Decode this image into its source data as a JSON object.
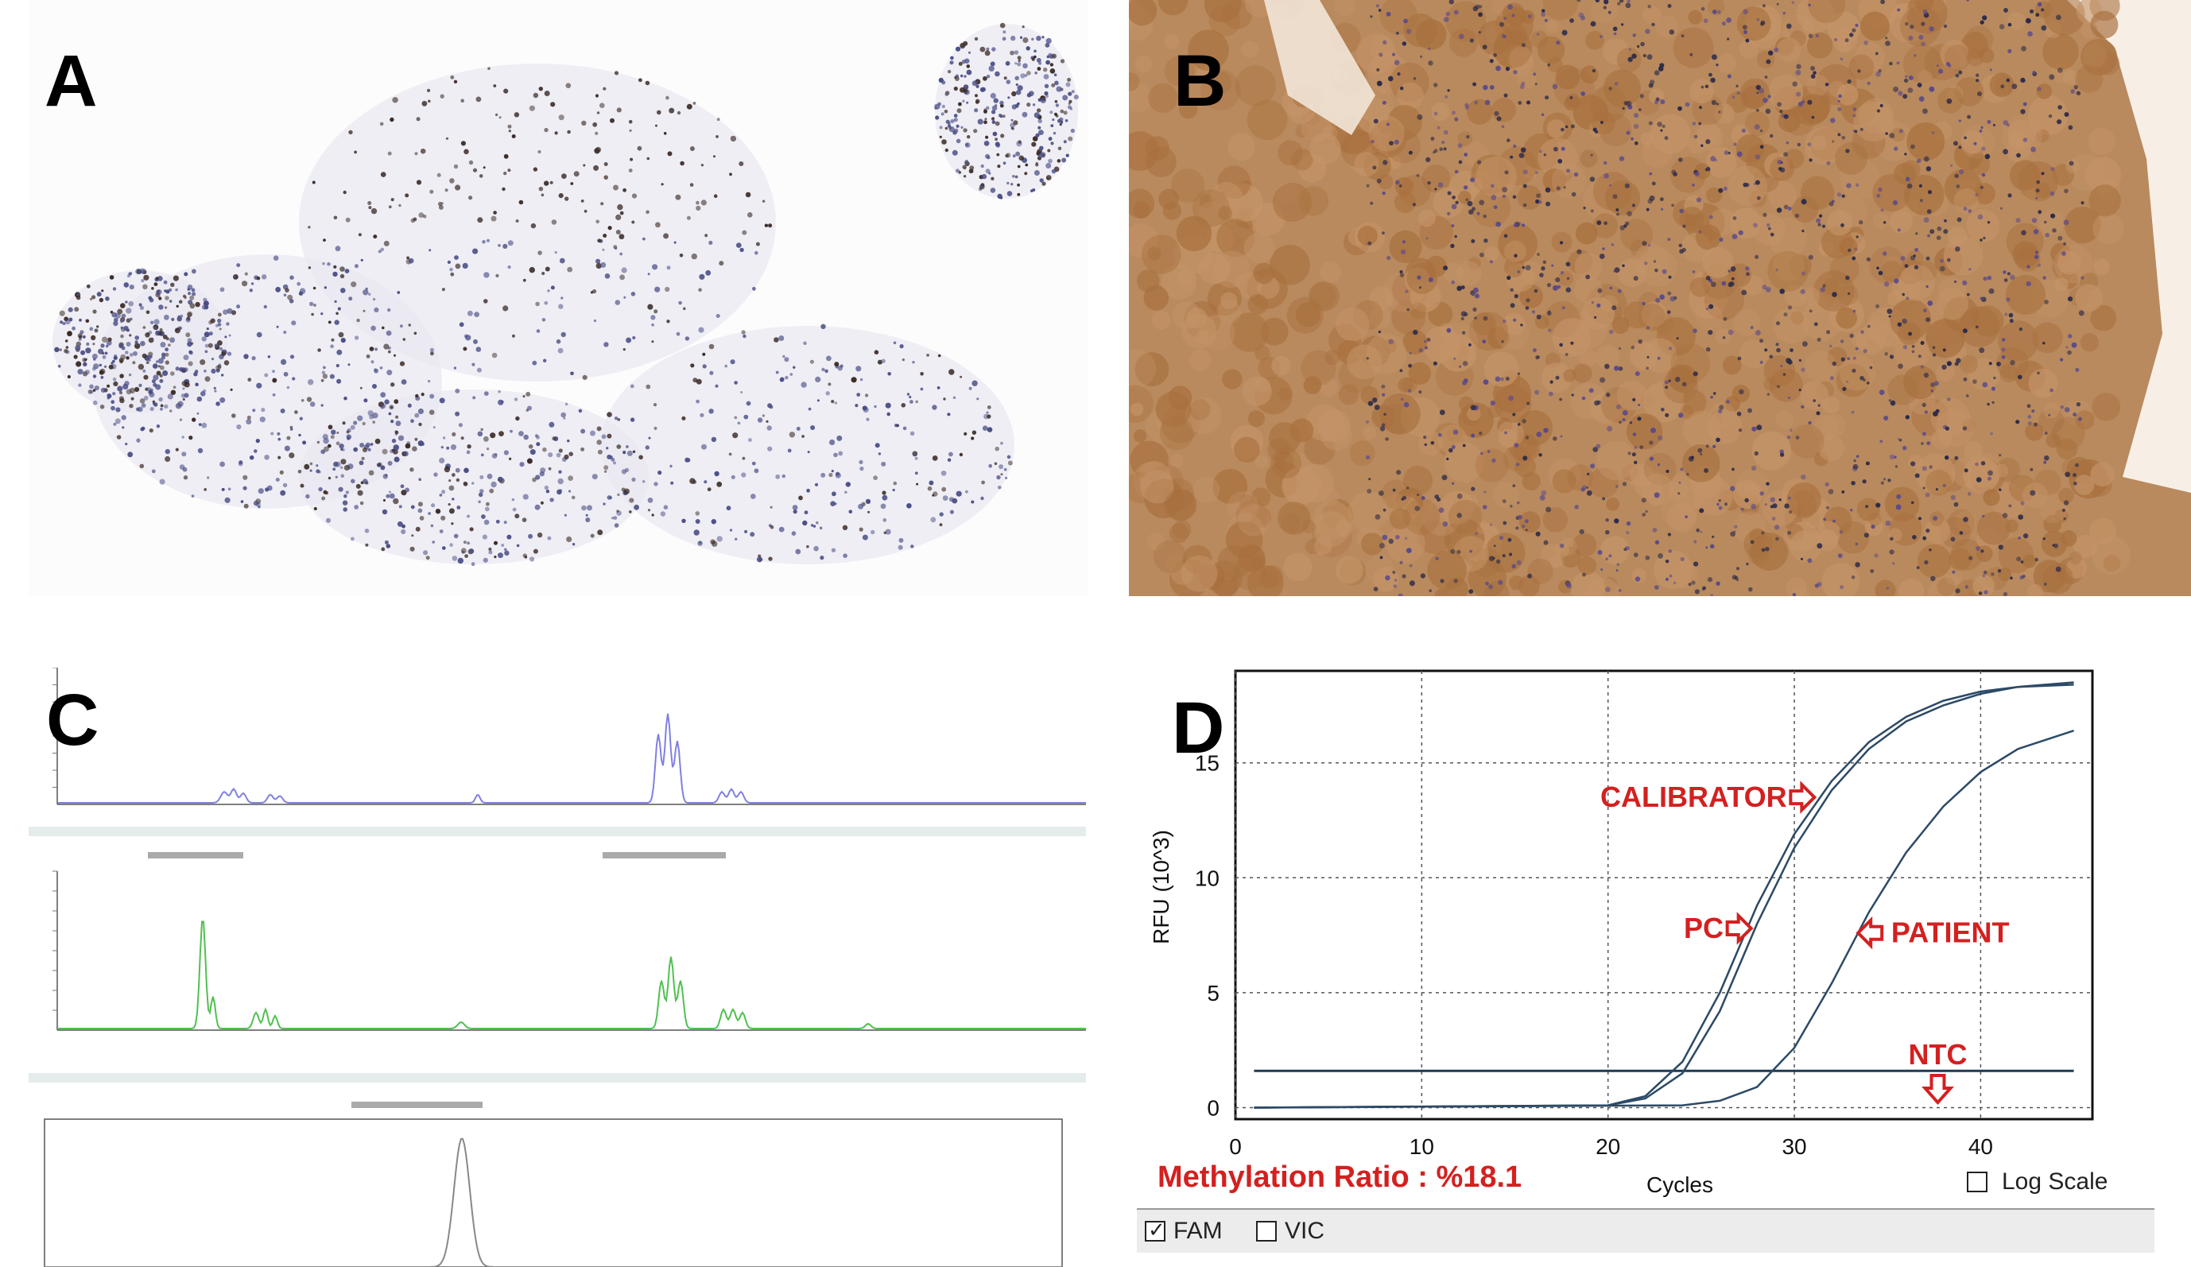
{
  "panels": {
    "a": {
      "label": "A"
    },
    "b": {
      "label": "B"
    },
    "c": {
      "label": "C"
    },
    "d": {
      "label": "D"
    }
  },
  "colors": {
    "dab_brown": "#9a6a3a",
    "hematoxylin_blue": "#4b4f86",
    "trace_blue": "#8080e0",
    "trace_green": "#50c050",
    "trace_gray": "#888888",
    "curve": "#2c4a66",
    "annotation_red": "#d42020"
  },
  "chart_data": {
    "type": "line",
    "xlabel": "Cycles",
    "ylabel": "RFU (10^3)",
    "xlim": [
      0,
      46
    ],
    "ylim": [
      -0.5,
      19
    ],
    "x_ticks": [
      0,
      10,
      20,
      30,
      40
    ],
    "y_ticks": [
      0,
      5,
      10,
      15
    ],
    "grid": true,
    "threshold": 1.6,
    "series": [
      {
        "name": "CALIBRATOR",
        "x": [
          1,
          20,
          22,
          24,
          26,
          28,
          30,
          32,
          34,
          36,
          38,
          40,
          42,
          45
        ],
        "y": [
          0,
          0.1,
          0.5,
          2.0,
          5.0,
          8.8,
          11.9,
          14.2,
          15.9,
          17.0,
          17.7,
          18.1,
          18.3,
          18.5
        ]
      },
      {
        "name": "PC",
        "x": [
          1,
          20,
          22,
          24,
          26,
          28,
          30,
          32,
          34,
          36,
          38,
          40,
          42,
          45
        ],
        "y": [
          0,
          0.1,
          0.4,
          1.5,
          4.2,
          8.0,
          11.3,
          13.8,
          15.6,
          16.8,
          17.5,
          18.0,
          18.3,
          18.4
        ]
      },
      {
        "name": "PATIENT",
        "x": [
          1,
          24,
          26,
          28,
          30,
          32,
          34,
          36,
          38,
          40,
          42,
          45
        ],
        "y": [
          0,
          0.1,
          0.3,
          0.9,
          2.6,
          5.4,
          8.5,
          11.1,
          13.1,
          14.6,
          15.6,
          16.4
        ]
      }
    ],
    "annotations": {
      "calibrator": "CALIBRATOR",
      "pc": "PC",
      "patient": "PATIENT",
      "ntc": "NTC"
    },
    "ratio_text": "Methylation Ratio : %18.1",
    "log_scale_label": "Log Scale",
    "channels": [
      {
        "label": "FAM",
        "checked": true
      },
      {
        "label": "VIC",
        "checked": false
      }
    ]
  }
}
